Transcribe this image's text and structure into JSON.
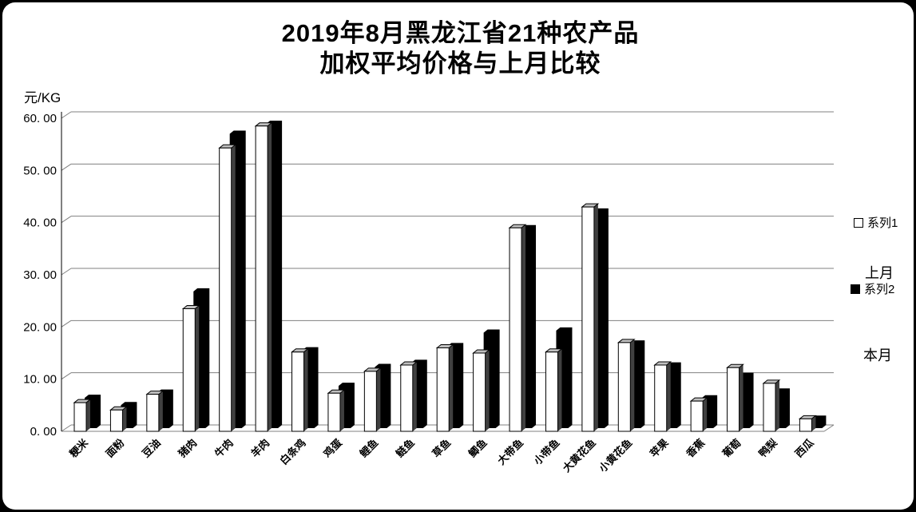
{
  "title": {
    "line1": "2019年8月黑龙江省21种农产品",
    "line2": "加权平均价格与上月比较"
  },
  "unit_label": "元/KG",
  "legend": {
    "series1_label": "系列1",
    "series1_annotation": "上月",
    "series2_label": "系列2",
    "series2_annotation": "本月"
  },
  "colors": {
    "series1_fill": "#FFFFFF",
    "series1_top": "#C0C0C0",
    "series1_side": "#404040",
    "series2_fill": "#000000",
    "gridline": "#808080",
    "axis": "#000000",
    "frame": "#000000",
    "background": "#FFFFFF"
  },
  "chart_data": {
    "type": "bar",
    "style": "3d-clustered-column",
    "title": "2019年8月黑龙江省21种农产品加权平均价格与上月比较",
    "xlabel": "",
    "ylabel": "元/KG",
    "ylim": [
      0,
      60
    ],
    "ytick_interval": 10,
    "ytick_labels": [
      "0. 00",
      "10. 00",
      "20. 00",
      "30. 00",
      "40. 00",
      "50. 00",
      "60. 00"
    ],
    "grid": true,
    "legend_position": "right",
    "categories": [
      "粳米",
      "面粉",
      "豆油",
      "猪肉",
      "牛肉",
      "羊肉",
      "白条鸡",
      "鸡蛋",
      "鲤鱼",
      "鲢鱼",
      "草鱼",
      "鲫鱼",
      "大带鱼",
      "小带鱼",
      "大黄花鱼",
      "小黄花鱼",
      "苹果",
      "香蕉",
      "葡萄",
      "鸭梨",
      "西瓜"
    ],
    "series": [
      {
        "name": "系列1",
        "annotation": "上月",
        "values": [
          5.5,
          4.1,
          7.1,
          23.5,
          54.3,
          58.5,
          15.2,
          7.3,
          11.5,
          12.7,
          16.0,
          15.0,
          39.0,
          15.2,
          43.0,
          17.0,
          12.7,
          5.8,
          12.2,
          9.2,
          2.4
        ]
      },
      {
        "name": "系列2",
        "annotation": "本月",
        "values": [
          5.8,
          4.4,
          6.8,
          26.2,
          56.4,
          58.3,
          14.9,
          8.1,
          11.7,
          12.5,
          15.7,
          18.3,
          38.3,
          18.7,
          41.5,
          16.2,
          12.0,
          5.7,
          10.0,
          7.0,
          1.8
        ]
      }
    ]
  }
}
